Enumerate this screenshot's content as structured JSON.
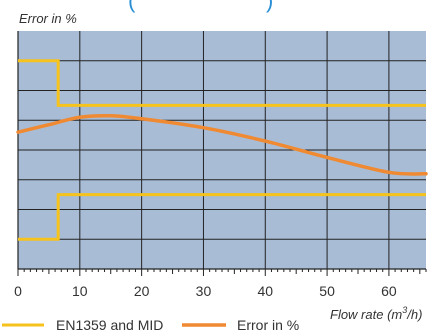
{
  "chart_data": {
    "type": "line",
    "title": "(",
    "title_trailing": ")",
    "ylabel": "Error in %",
    "xlabel": "Flow rate (m",
    "xlabel_sup": "3",
    "xlabel_tail": "/h)",
    "xlim": [
      0,
      66
    ],
    "ylim": [
      -4,
      4
    ],
    "x_ticks": [
      "0",
      "10",
      "20",
      "30",
      "40",
      "50",
      "60"
    ],
    "x_tick_values": [
      0,
      10,
      20,
      30,
      40,
      50,
      60
    ],
    "grid": true,
    "background_color": "#a8bcd6",
    "grid_color": "#222222",
    "legend_position": "bottom",
    "series": [
      {
        "name": "EN1359 and MID",
        "color": "#f6c21c",
        "segments": [
          [
            [
              0,
              3.0
            ],
            [
              6.5,
              3.0
            ],
            [
              6.5,
              1.5
            ],
            [
              66,
              1.5
            ]
          ],
          [
            [
              0,
              -3.0
            ],
            [
              6.5,
              -3.0
            ],
            [
              6.5,
              -1.5
            ],
            [
              66,
              -1.5
            ]
          ]
        ]
      },
      {
        "name": "Error in %",
        "color": "#f08a32",
        "points": [
          [
            0,
            0.6
          ],
          [
            5,
            0.85
          ],
          [
            10,
            1.1
          ],
          [
            15,
            1.15
          ],
          [
            20,
            1.05
          ],
          [
            30,
            0.75
          ],
          [
            40,
            0.3
          ],
          [
            50,
            -0.25
          ],
          [
            60,
            -0.75
          ],
          [
            66,
            -0.8
          ]
        ]
      }
    ]
  }
}
